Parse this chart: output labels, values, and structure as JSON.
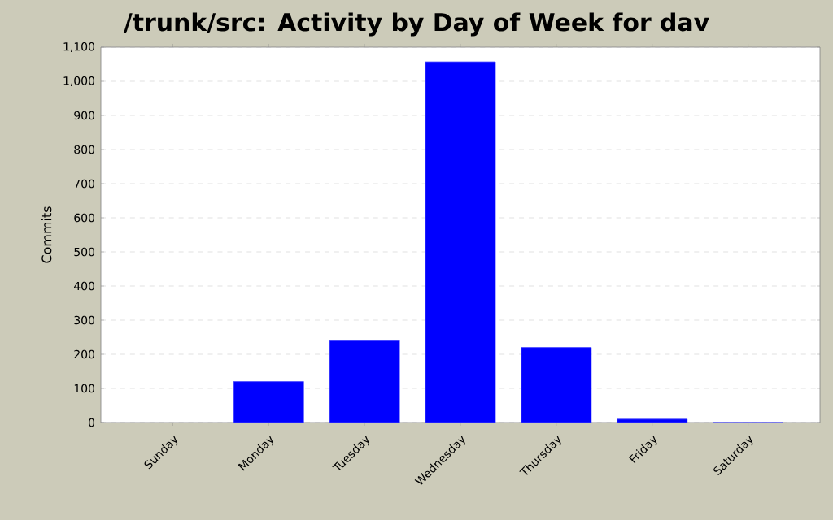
{
  "chart_data": {
    "type": "bar",
    "title": "/trunk/src: Activity by Day of Week for dav",
    "ylabel": "Commits",
    "categories": [
      "Sunday",
      "Monday",
      "Tuesday",
      "Wednesday",
      "Thursday",
      "Friday",
      "Saturday"
    ],
    "values": [
      null,
      120,
      240,
      1057,
      220,
      10,
      0
    ],
    "color": "#0000ff",
    "ylim": [
      0,
      1100
    ],
    "yticks": [
      0,
      100,
      200,
      300,
      400,
      500,
      600,
      700,
      800,
      900,
      {
        "value": 1000,
        "label": "1,000"
      },
      {
        "value": 1100,
        "label": "1,100"
      }
    ],
    "grid": "y"
  }
}
